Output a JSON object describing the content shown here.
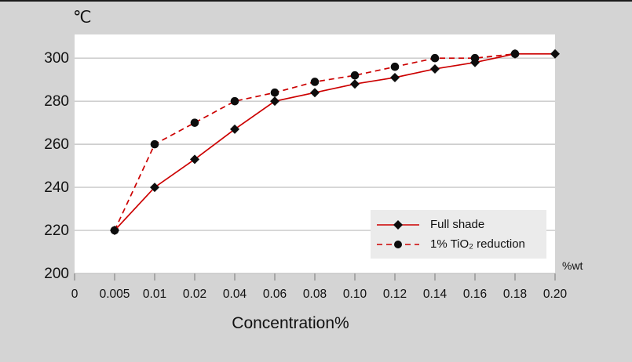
{
  "page": {
    "background": "#d4d4d4",
    "top_border_color": "#1a1a1a"
  },
  "chart_data": {
    "type": "line",
    "title": "",
    "y_unit": "℃",
    "x_unit": "%wt",
    "xlabel": "Concentration%",
    "x_categories": [
      "0",
      "0.005",
      "0.01",
      "0.02",
      "0.04",
      "0.06",
      "0.08",
      "0.10",
      "0.12",
      "0.14",
      "0.16",
      "0.18",
      "0.20"
    ],
    "y_ticks": [
      300,
      280,
      260,
      240,
      220,
      200
    ],
    "ylim": [
      200,
      311
    ],
    "grid": true,
    "legend_position": "inside-bottom-right",
    "plot_bg": "#ffffff",
    "gridline_color": "#c7c7c7",
    "tick_color": "#9a9a9a",
    "series": [
      {
        "name": "Full shade",
        "line_style": "solid",
        "marker": "diamond",
        "line_color": "#cc0000",
        "marker_color": "#0d0d0d",
        "start_category_index": 1,
        "values": [
          220,
          240,
          253,
          267,
          280,
          284,
          288,
          291,
          295,
          298,
          302,
          302
        ]
      },
      {
        "name": "1% TiO₂ reduction",
        "line_style": "dashed",
        "marker": "circle",
        "line_color": "#cc0000",
        "marker_color": "#0d0d0d",
        "start_category_index": 1,
        "values": [
          220,
          260,
          270,
          280,
          284,
          289,
          292,
          296,
          300,
          300,
          302
        ]
      }
    ]
  }
}
